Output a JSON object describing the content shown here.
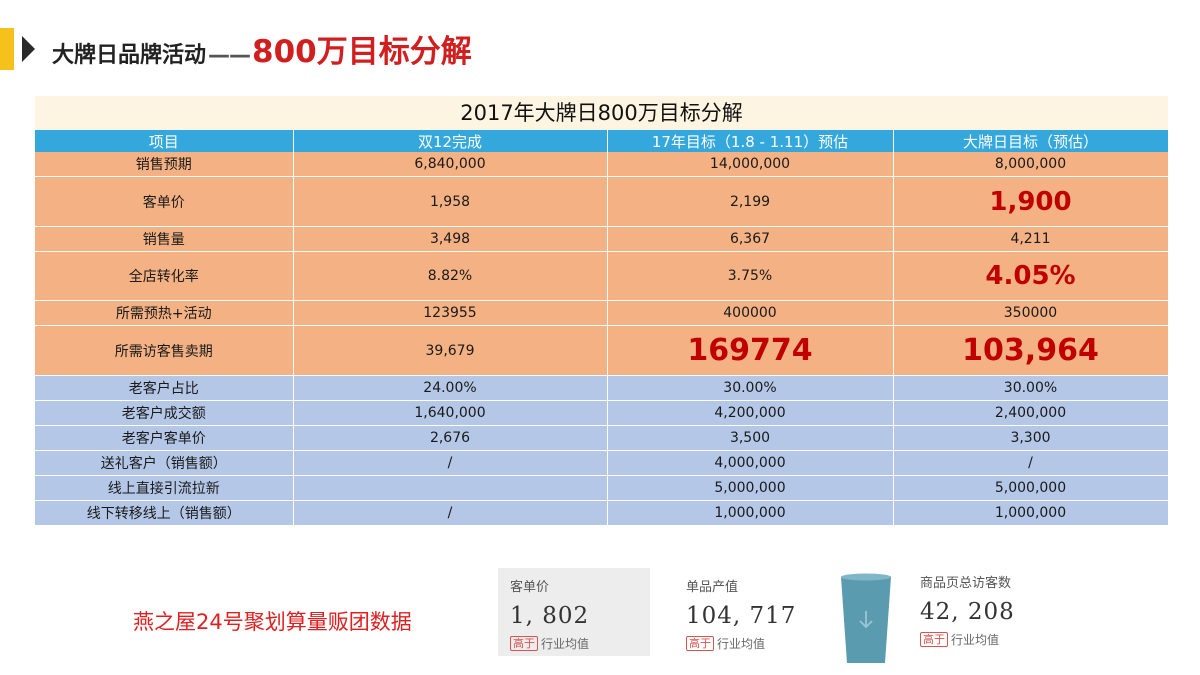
{
  "header": {
    "title_main": "大牌日品牌活动",
    "title_dash": "——",
    "title_highlight": "800万目标分解"
  },
  "table": {
    "title": "2017年大牌日800万目标分解",
    "headers": [
      "项目",
      "双12完成",
      "17年目标（1.8 - 1.11）预估",
      "大牌日目标（预估）"
    ],
    "rows": [
      [
        "销售预期",
        "6,840,000",
        "14,000,000",
        "8,000,000"
      ],
      [
        "客单价",
        "1,958",
        "2,199",
        "1,900"
      ],
      [
        "销售量",
        "3,498",
        "6,367",
        "4,211"
      ],
      [
        "全店转化率",
        "8.82%",
        "3.75%",
        "4.05%"
      ],
      [
        "所需预热+活动",
        "123955",
        "400000",
        "350000"
      ],
      [
        "所需访客售卖期",
        "39,679",
        "169774",
        "103,964"
      ],
      [
        "老客户占比",
        "24.00%",
        "30.00%",
        "30.00%"
      ],
      [
        "老客户成交额",
        "1,640,000",
        "4,200,000",
        "2,400,000"
      ],
      [
        "老客户客单价",
        "2,676",
        "3,500",
        "3,300"
      ],
      [
        "送礼客户（销售额）",
        "/",
        "4,000,000",
        "/"
      ],
      [
        "线上直接引流拉新",
        "",
        "5,000,000",
        "5,000,000"
      ],
      [
        "线下转移线上（销售额）",
        "/",
        "1,000,000",
        "1,000,000"
      ]
    ]
  },
  "bottom": {
    "caption": "燕之屋24号聚划算量贩团数据",
    "stats": [
      {
        "label": "客单价",
        "value": "1, 802",
        "tag": "高于",
        "tag_text": "行业均值"
      },
      {
        "label": "单品产值",
        "value": "104, 717",
        "tag": "高于",
        "tag_text": "行业均值"
      },
      {
        "label": "商品页总访客数",
        "value": "42, 208",
        "tag": "高于",
        "tag_text": "行业均值"
      }
    ]
  },
  "colors": {
    "accent": "#f4c21a",
    "header_blue": "#34a8dc",
    "row_orange": "#f4b183",
    "row_blue": "#b4c7e7",
    "highlight_red": "#c00000",
    "cup": "#5b9bb0"
  },
  "icons": [
    "chevron-right-icon",
    "cup-icon",
    "down-arrow-icon"
  ]
}
